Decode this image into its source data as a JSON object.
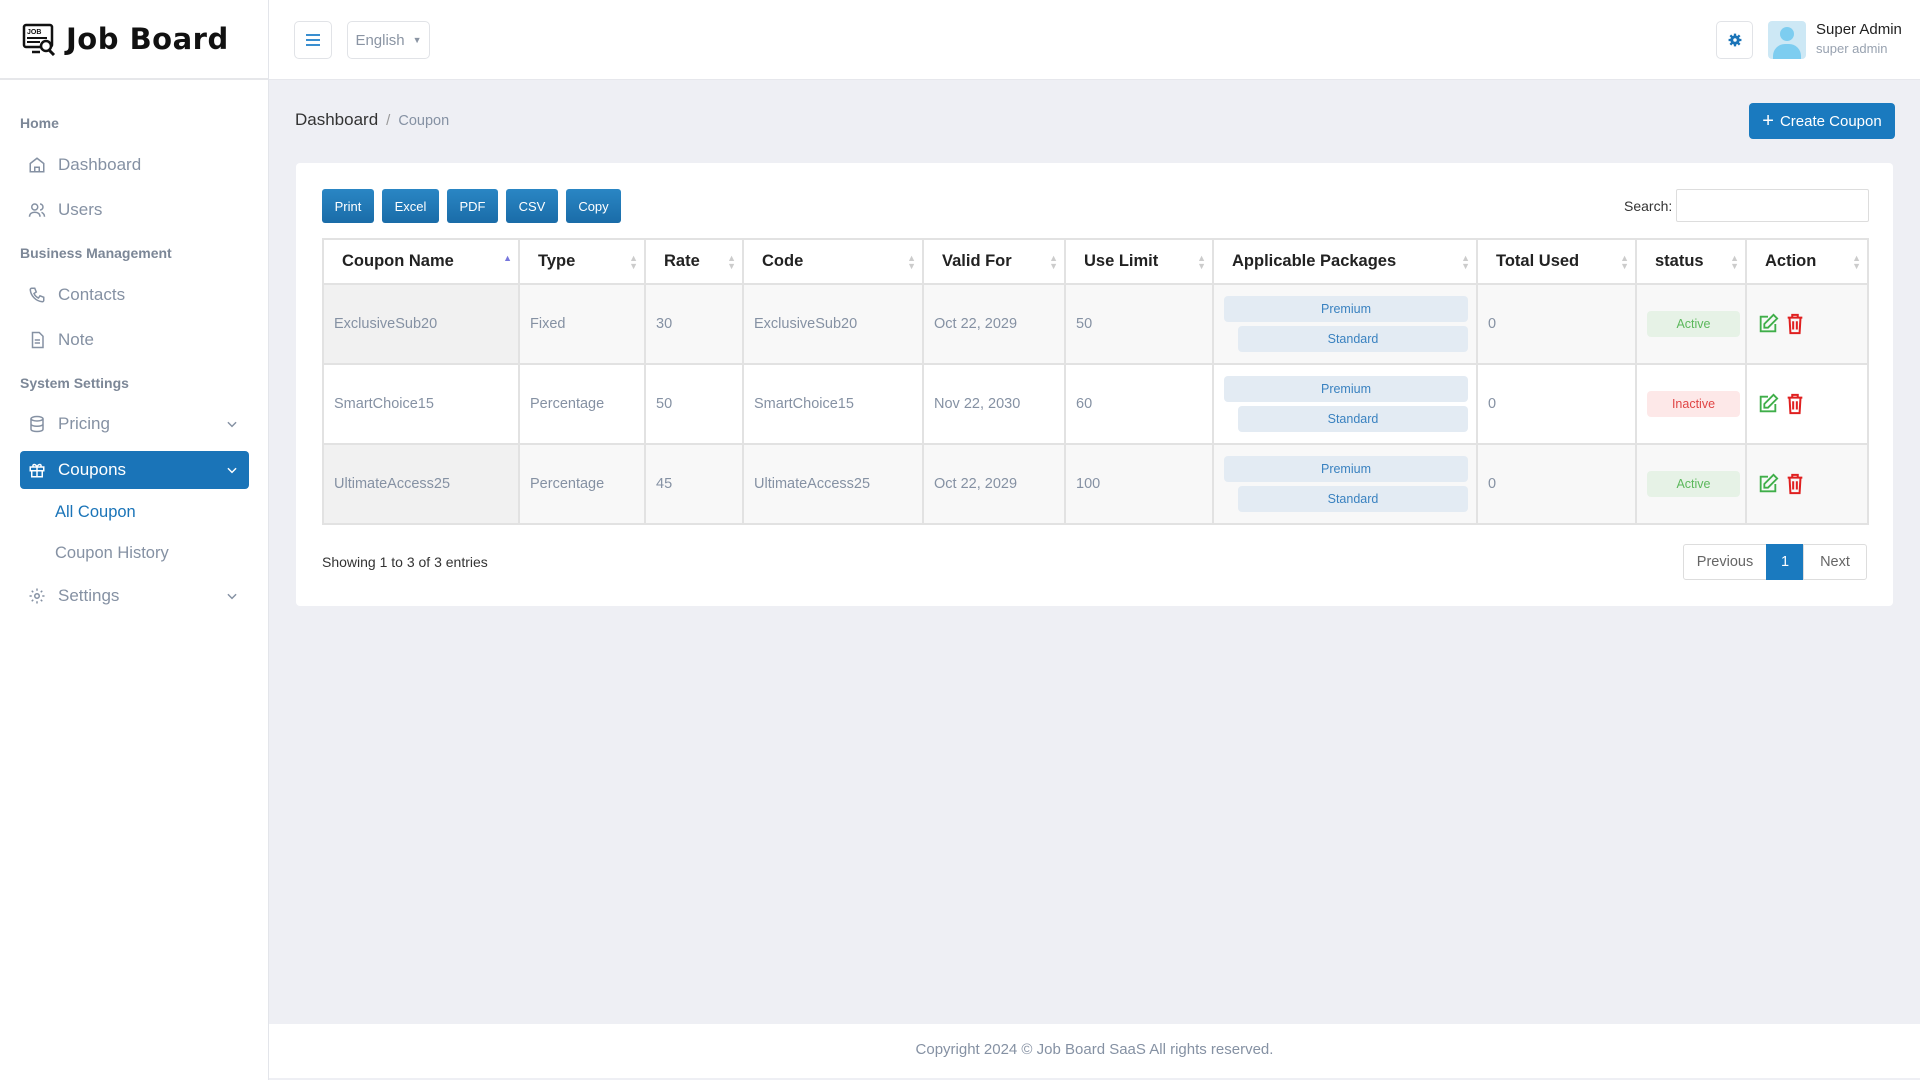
{
  "app": {
    "title": "Job Board"
  },
  "sidebar": {
    "sections": [
      "Home",
      "Business Management",
      "System Settings"
    ],
    "items": {
      "dashboard": "Dashboard",
      "users": "Users",
      "contacts": "Contacts",
      "note": "Note",
      "pricing": "Pricing",
      "coupons": "Coupons",
      "settings": "Settings"
    },
    "sub": {
      "all": "All Coupon",
      "history": "Coupon History"
    }
  },
  "header": {
    "language": "English",
    "user_name": "Super Admin",
    "user_role": "super admin"
  },
  "breadcrumb": {
    "root": "Dashboard",
    "sep": "/",
    "current": "Coupon"
  },
  "create_label": "Create Coupon",
  "export": [
    "Print",
    "Excel",
    "PDF",
    "CSV",
    "Copy"
  ],
  "search_label": "Search:",
  "search_value": "",
  "table": {
    "columns": [
      "Coupon Name",
      "Type",
      "Rate",
      "Code",
      "Valid For",
      "Use Limit",
      "Applicable Packages",
      "Total Used",
      "status",
      "Action"
    ],
    "rows": [
      {
        "name": "ExclusiveSub20",
        "type": "Fixed",
        "rate": "30",
        "code": "ExclusiveSub20",
        "valid": "Oct 22, 2029",
        "limit": "50",
        "packages": [
          "Premium",
          "Standard"
        ],
        "used": "0",
        "status": "Active"
      },
      {
        "name": "SmartChoice15",
        "type": "Percentage",
        "rate": "50",
        "code": "SmartChoice15",
        "valid": "Nov 22, 2030",
        "limit": "60",
        "packages": [
          "Premium",
          "Standard"
        ],
        "used": "0",
        "status": "Inactive"
      },
      {
        "name": "UltimateAccess25",
        "type": "Percentage",
        "rate": "45",
        "code": "UltimateAccess25",
        "valid": "Oct 22, 2029",
        "limit": "100",
        "packages": [
          "Premium",
          "Standard"
        ],
        "used": "0",
        "status": "Active"
      }
    ]
  },
  "info": "Showing 1 to 3 of 3 entries",
  "pagination": {
    "prev": "Previous",
    "page": "1",
    "next": "Next"
  },
  "footer": "Copyright 2024 © Job Board SaaS All rights reserved.",
  "colors": {
    "primary": "#1a74b8",
    "active_bg": "#e6f2e6",
    "active_fg": "#5cb85c",
    "inactive_bg": "#fde8e8",
    "inactive_fg": "#e04545",
    "edit": "#3fae49",
    "delete": "#e02020"
  }
}
